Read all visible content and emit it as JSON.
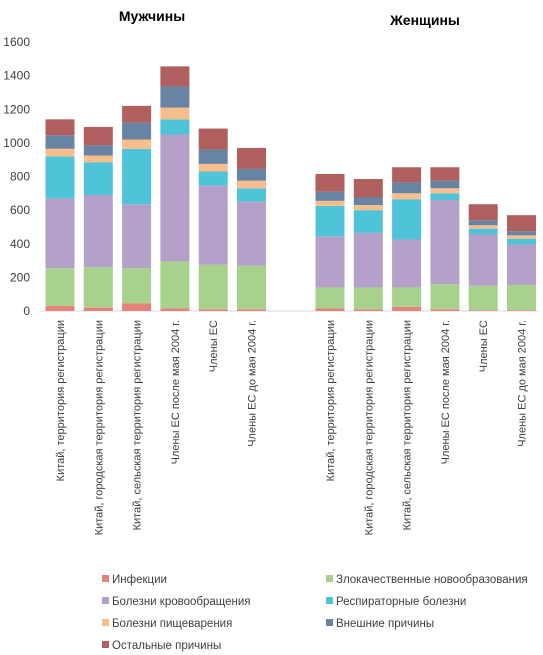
{
  "chart_data": {
    "type": "bar",
    "stacked": true,
    "ylim": [
      0,
      1600
    ],
    "yticks": [
      0,
      200,
      400,
      600,
      800,
      1000,
      1200,
      1400,
      1600
    ],
    "grid": false,
    "legend_position": "bottom",
    "series": [
      {
        "name": "Инфекции",
        "color": "#e6827c"
      },
      {
        "name": "Злокачественные  новообразования",
        "color": "#a9d18e"
      },
      {
        "name": "Болезни кровообращения",
        "color": "#b4a0c8"
      },
      {
        "name": "Респираторные болезни",
        "color": "#4fc3d7"
      },
      {
        "name": "Болезни пищеварения",
        "color": "#f9be8c"
      },
      {
        "name": "Внешние  причины",
        "color": "#6884a4"
      },
      {
        "name": "Остальные причины",
        "color": "#b05f5f"
      }
    ],
    "groups": [
      {
        "title": "Мужчины",
        "categories": [
          {
            "label": "Китай, территория регистрации",
            "values": [
              30,
              225,
              415,
              250,
              45,
              80,
              95
            ]
          },
          {
            "label": "Китай, городская территория  регистрации",
            "values": [
              20,
              240,
              430,
              195,
              40,
              60,
              110
            ]
          },
          {
            "label": "Китай,  сельская территория  регистрации",
            "values": [
              45,
              210,
              380,
              330,
              55,
              100,
              100
            ]
          },
          {
            "label": "Члены ЕС после  мая 2004 г.",
            "values": [
              15,
              280,
              755,
              90,
              70,
              125,
              120
            ]
          },
          {
            "label": "Члены ЕС",
            "values": [
              10,
              265,
              470,
              85,
              45,
              85,
              125
            ]
          },
          {
            "label": "Члены ЕС до мая 2004 г.",
            "values": [
              10,
              260,
              380,
              80,
              45,
              70,
              125
            ]
          }
        ]
      },
      {
        "title": "Женщины",
        "categories": [
          {
            "label": "Китай, территория регистрации",
            "values": [
              15,
              125,
              305,
              180,
              30,
              55,
              105
            ]
          },
          {
            "label": "Китай, городская территория  регистрации",
            "values": [
              10,
              130,
              325,
              135,
              30,
              45,
              110
            ]
          },
          {
            "label": "Китай,  сельская территория  регистрации",
            "values": [
              25,
              115,
              285,
              240,
              35,
              65,
              90
            ]
          },
          {
            "label": "Члены ЕС после  мая 2004 г.",
            "values": [
              10,
              150,
              500,
              40,
              30,
              45,
              80
            ]
          },
          {
            "label": "Члены ЕС",
            "values": [
              5,
              145,
              305,
              35,
              20,
              30,
              95
            ]
          },
          {
            "label": "Члены ЕС до мая 2004 г.",
            "values": [
              5,
              150,
              240,
              35,
              20,
              25,
              95
            ]
          }
        ]
      }
    ]
  }
}
